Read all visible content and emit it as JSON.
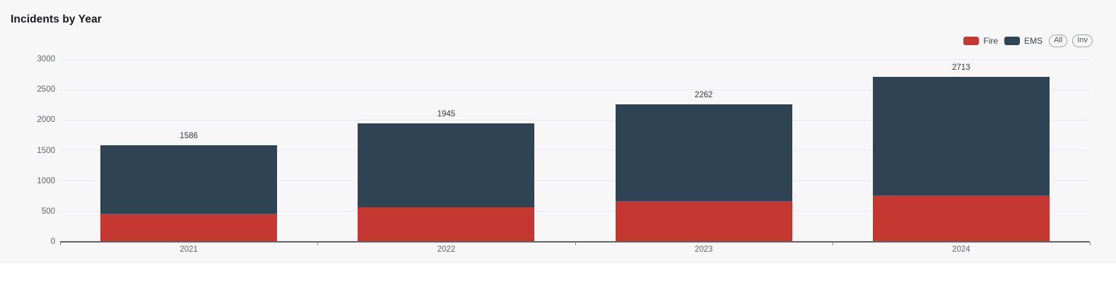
{
  "header": {
    "title": "Incidents by Year"
  },
  "legend": {
    "items": [
      {
        "label": "Fire",
        "color": "#c53731"
      },
      {
        "label": "EMS",
        "color": "#2e4354"
      }
    ],
    "buttons": [
      {
        "label": "All"
      },
      {
        "label": "Inv"
      }
    ]
  },
  "chart_data": {
    "type": "bar",
    "stacked": true,
    "title": "Incidents by Year",
    "categories": [
      "2021",
      "2022",
      "2023",
      "2024"
    ],
    "series": [
      {
        "name": "Fire",
        "color": "#c53731",
        "values": [
          467,
          564,
          672,
          761
        ]
      },
      {
        "name": "EMS",
        "color": "#2e4354",
        "values": [
          1119,
          1381,
          1590,
          1952
        ]
      }
    ],
    "totals": [
      1586,
      1945,
      2262,
      2713
    ],
    "xlabel": "",
    "ylabel": "",
    "ylim": [
      0,
      3000
    ],
    "yticks": [
      0,
      500,
      1000,
      1500,
      2000,
      2500,
      3000
    ],
    "grid": "horizontal",
    "legend_position": "top-right"
  },
  "colors": {
    "card_background": "#f7f7f8",
    "page_background": "#ffffff",
    "gridline": "#e8e9ee",
    "axis_line": "#616366",
    "tick_text": "#5f6368",
    "total_text": "#35383d",
    "title_text": "#1a1b1f"
  }
}
